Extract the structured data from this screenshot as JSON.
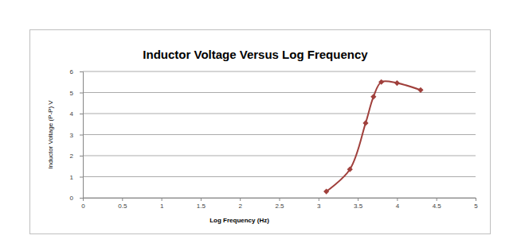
{
  "chart_data": {
    "type": "line",
    "title": "Inductor Voltage Versus Log Frequency",
    "x_label": "Log Frequency (Hz)",
    "y_label": "Inductor Voltage (P-P) V",
    "x": [
      3.1,
      3.4,
      3.6,
      3.7,
      3.8,
      4.0,
      4.3
    ],
    "values": [
      0.3,
      1.35,
      3.55,
      4.8,
      5.5,
      5.45,
      5.12
    ],
    "color": "#a0403c",
    "marker": "diamond",
    "line_style": "smooth",
    "xlim": [
      0,
      5
    ],
    "xticks": [
      0,
      0.5,
      1,
      1.5,
      2,
      2.5,
      3,
      3.5,
      4,
      4.5,
      5
    ],
    "ylim": [
      0,
      6
    ],
    "yticks": [
      0,
      1,
      2,
      3,
      4,
      5,
      6
    ],
    "grid": true
  }
}
